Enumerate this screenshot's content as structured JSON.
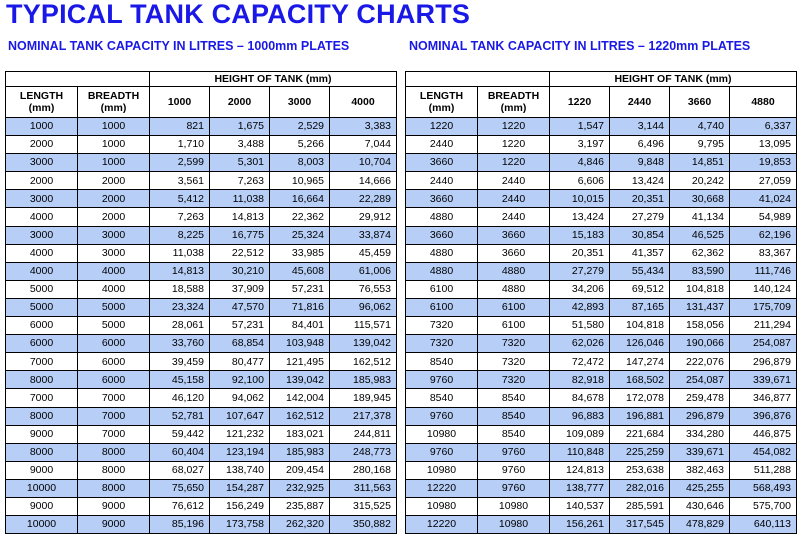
{
  "title": "TYPICAL TANK CAPACITY CHARTS",
  "left": {
    "subtitle": "NOMINAL TANK CAPACITY IN LITRES – 1000mm PLATES",
    "height_header": "HEIGHT OF TANK (mm)",
    "col_length": "LENGTH (mm)",
    "col_breadth": "BREADTH (mm)",
    "heights": [
      "1000",
      "2000",
      "3000",
      "4000"
    ],
    "rows": [
      [
        "1000",
        "1000",
        "821",
        "1,675",
        "2,529",
        "3,383"
      ],
      [
        "2000",
        "1000",
        "1,710",
        "3,488",
        "5,266",
        "7,044"
      ],
      [
        "3000",
        "1000",
        "2,599",
        "5,301",
        "8,003",
        "10,704"
      ],
      [
        "2000",
        "2000",
        "3,561",
        "7,263",
        "10,965",
        "14,666"
      ],
      [
        "3000",
        "2000",
        "5,412",
        "11,038",
        "16,664",
        "22,289"
      ],
      [
        "4000",
        "2000",
        "7,263",
        "14,813",
        "22,362",
        "29,912"
      ],
      [
        "3000",
        "3000",
        "8,225",
        "16,775",
        "25,324",
        "33,874"
      ],
      [
        "4000",
        "3000",
        "11,038",
        "22,512",
        "33,985",
        "45,459"
      ],
      [
        "4000",
        "4000",
        "14,813",
        "30,210",
        "45,608",
        "61,006"
      ],
      [
        "5000",
        "4000",
        "18,588",
        "37,909",
        "57,231",
        "76,553"
      ],
      [
        "5000",
        "5000",
        "23,324",
        "47,570",
        "71,816",
        "96,062"
      ],
      [
        "6000",
        "5000",
        "28,061",
        "57,231",
        "84,401",
        "115,571"
      ],
      [
        "6000",
        "6000",
        "33,760",
        "68,854",
        "103,948",
        "139,042"
      ],
      [
        "7000",
        "6000",
        "39,459",
        "80,477",
        "121,495",
        "162,512"
      ],
      [
        "8000",
        "6000",
        "45,158",
        "92,100",
        "139,042",
        "185,983"
      ],
      [
        "7000",
        "7000",
        "46,120",
        "94,062",
        "142,004",
        "189,945"
      ],
      [
        "8000",
        "7000",
        "52,781",
        "107,647",
        "162,512",
        "217,378"
      ],
      [
        "9000",
        "7000",
        "59,442",
        "121,232",
        "183,021",
        "244,811"
      ],
      [
        "8000",
        "8000",
        "60,404",
        "123,194",
        "185,983",
        "248,773"
      ],
      [
        "9000",
        "8000",
        "68,027",
        "138,740",
        "209,454",
        "280,168"
      ],
      [
        "10000",
        "8000",
        "75,650",
        "154,287",
        "232,925",
        "311,563"
      ],
      [
        "9000",
        "9000",
        "76,612",
        "156,249",
        "235,887",
        "315,525"
      ],
      [
        "10000",
        "9000",
        "85,196",
        "173,758",
        "262,320",
        "350,882"
      ]
    ]
  },
  "right": {
    "subtitle": "NOMINAL TANK CAPACITY IN LITRES – 1220mm PLATES",
    "height_header": "HEIGHT OF TANK (mm)",
    "col_length": "LENGTH (mm)",
    "col_breadth": "BREADTH (mm)",
    "heights": [
      "1220",
      "2440",
      "3660",
      "4880"
    ],
    "rows": [
      [
        "1220",
        "1220",
        "1,547",
        "3,144",
        "4,740",
        "6,337"
      ],
      [
        "2440",
        "1220",
        "3,197",
        "6,496",
        "9,795",
        "13,095"
      ],
      [
        "3660",
        "1220",
        "4,846",
        "9,848",
        "14,851",
        "19,853"
      ],
      [
        "2440",
        "2440",
        "6,606",
        "13,424",
        "20,242",
        "27,059"
      ],
      [
        "3660",
        "2440",
        "10,015",
        "20,351",
        "30,668",
        "41,024"
      ],
      [
        "4880",
        "2440",
        "13,424",
        "27,279",
        "41,134",
        "54,989"
      ],
      [
        "3660",
        "3660",
        "15,183",
        "30,854",
        "46,525",
        "62,196"
      ],
      [
        "4880",
        "3660",
        "20,351",
        "41,357",
        "62,362",
        "83,367"
      ],
      [
        "4880",
        "4880",
        "27,279",
        "55,434",
        "83,590",
        "111,746"
      ],
      [
        "6100",
        "4880",
        "34,206",
        "69,512",
        "104,818",
        "140,124"
      ],
      [
        "6100",
        "6100",
        "42,893",
        "87,165",
        "131,437",
        "175,709"
      ],
      [
        "7320",
        "6100",
        "51,580",
        "104,818",
        "158,056",
        "211,294"
      ],
      [
        "7320",
        "7320",
        "62,026",
        "126,046",
        "190,066",
        "254,087"
      ],
      [
        "8540",
        "7320",
        "72,472",
        "147,274",
        "222,076",
        "296,879"
      ],
      [
        "9760",
        "7320",
        "82,918",
        "168,502",
        "254,087",
        "339,671"
      ],
      [
        "8540",
        "8540",
        "84,678",
        "172,078",
        "259,478",
        "346,877"
      ],
      [
        "9760",
        "8540",
        "96,883",
        "196,881",
        "296,879",
        "396,876"
      ],
      [
        "10980",
        "8540",
        "109,089",
        "221,684",
        "334,280",
        "446,875"
      ],
      [
        "9760",
        "9760",
        "110,848",
        "225,259",
        "339,671",
        "454,082"
      ],
      [
        "10980",
        "9760",
        "124,813",
        "253,638",
        "382,463",
        "511,288"
      ],
      [
        "12220",
        "9760",
        "138,777",
        "282,016",
        "425,255",
        "568,493"
      ],
      [
        "10980",
        "10980",
        "140,537",
        "285,591",
        "430,646",
        "575,700"
      ],
      [
        "12220",
        "10980",
        "156,261",
        "317,545",
        "478,829",
        "640,113"
      ]
    ]
  }
}
